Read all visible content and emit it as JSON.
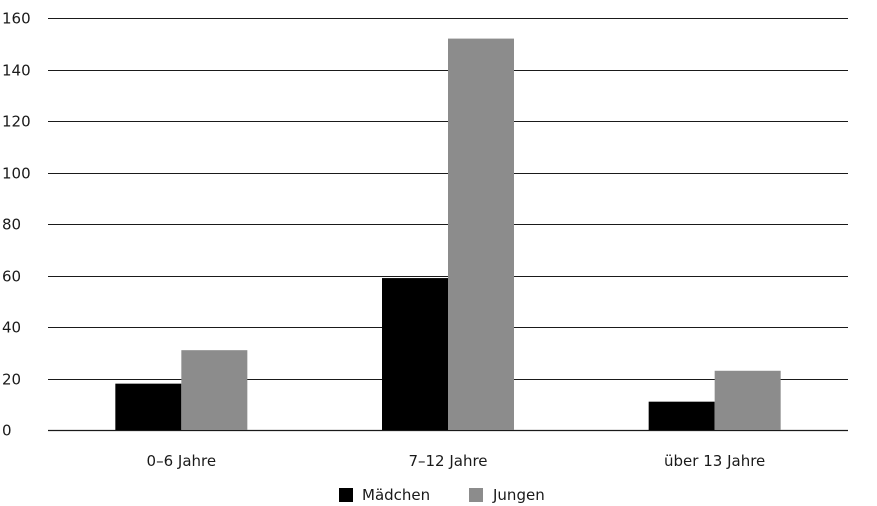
{
  "chart_data": {
    "type": "bar",
    "title": "",
    "xlabel": "",
    "ylabel": "",
    "categories": [
      "0–6 Jahre",
      "7–12 Jahre",
      "über 13 Jahre"
    ],
    "series": [
      {
        "name": "Mädchen",
        "values": [
          18,
          59,
          11
        ],
        "color": "#000000"
      },
      {
        "name": "Jungen",
        "values": [
          31,
          152,
          23
        ],
        "color": "#8c8c8c"
      }
    ],
    "ylim": [
      0,
      160
    ],
    "yticks": [
      0,
      20,
      40,
      60,
      80,
      100,
      120,
      140,
      160
    ],
    "grid": true,
    "legend_position": "bottom"
  }
}
